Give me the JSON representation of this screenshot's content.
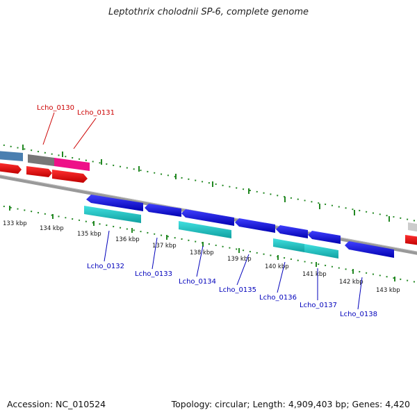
{
  "title": "Leptothrix cholodnii SP-6, complete genome",
  "accession": "Accession: NC_010524",
  "summary": "Topology: circular; Length: 4,909,403 bp; Genes: 4,420",
  "kbp_labels": [
    "133 kbp",
    "134 kbp",
    "135 kbp",
    "136 kbp",
    "137 kbp",
    "138 kbp",
    "139 kbp",
    "140 kbp",
    "141 kbp",
    "142 kbp",
    "143 kbp"
  ],
  "gene_labels": {
    "lcho_0130": "Lcho_0130",
    "lcho_0131": "Lcho_0131",
    "lcho_0132": "Lcho_0132",
    "lcho_0133": "Lcho_0133",
    "lcho_0134": "Lcho_0134",
    "lcho_0135": "Lcho_0135",
    "lcho_0136": "Lcho_0136",
    "lcho_0137": "Lcho_0137",
    "lcho_0138": "Lcho_0138"
  },
  "colors": {
    "forward_cds": "#ee0000",
    "reverse_cds": "#0000e6",
    "rna_cyan": "#22c8c8",
    "pink": "#ee1188",
    "grey_feature": "#777777",
    "steel_blue": "#4a7fb0",
    "backbone": "#888888",
    "ticks": "#228822",
    "forward_label": "#cc0000",
    "reverse_label": "#0000bb"
  }
}
